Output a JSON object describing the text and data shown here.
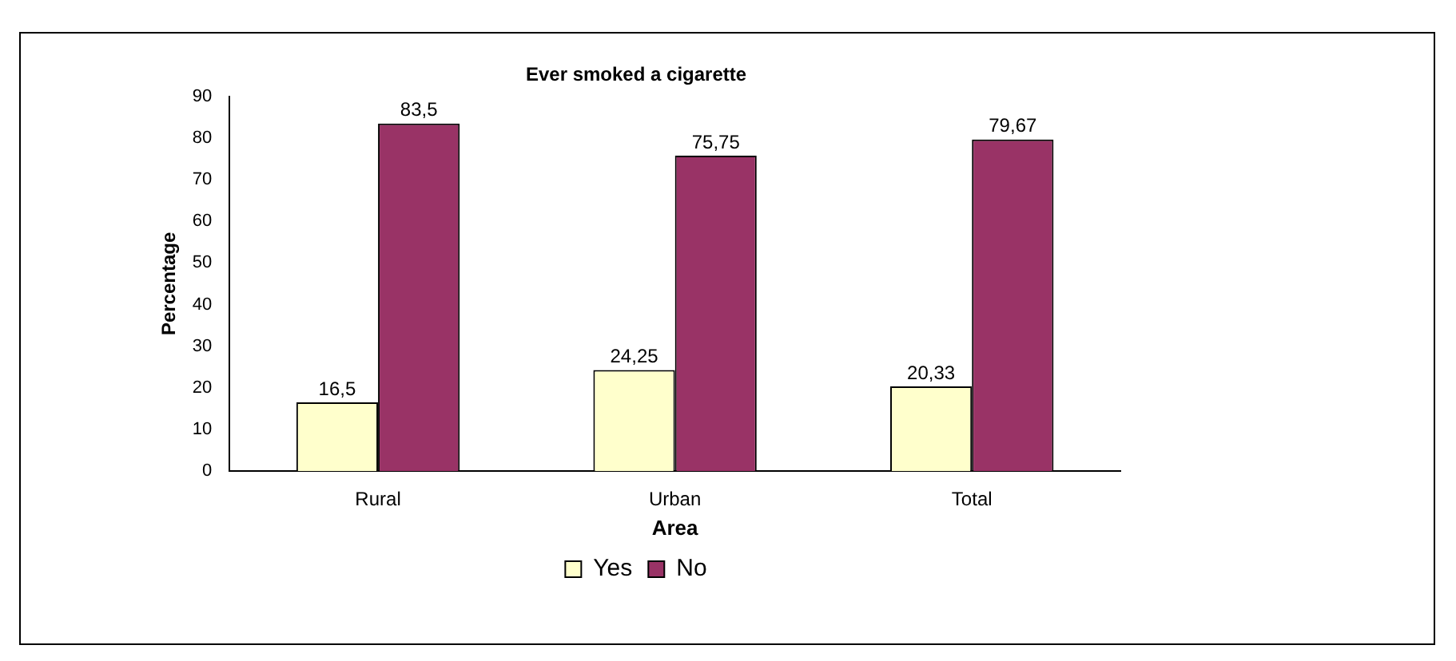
{
  "chart_data": {
    "type": "bar",
    "title": "Ever smoked a cigarette",
    "xlabel": "Area",
    "ylabel": "Percentage",
    "categories": [
      "Rural",
      "Urban",
      "Total"
    ],
    "series": [
      {
        "name": "Yes",
        "color": "#ffffcc",
        "values": [
          16.5,
          24.25,
          20.33
        ],
        "value_labels": [
          "16,5",
          "24,25",
          "20,33"
        ]
      },
      {
        "name": "No",
        "color": "#993366",
        "values": [
          83.5,
          75.75,
          79.67
        ],
        "value_labels": [
          "83,5",
          "75,75",
          "79,67"
        ]
      }
    ],
    "ylim": [
      0,
      90
    ],
    "yticks": [
      0,
      10,
      20,
      30,
      40,
      50,
      60,
      70,
      80,
      90
    ],
    "grid": false,
    "legend": "bottom"
  }
}
